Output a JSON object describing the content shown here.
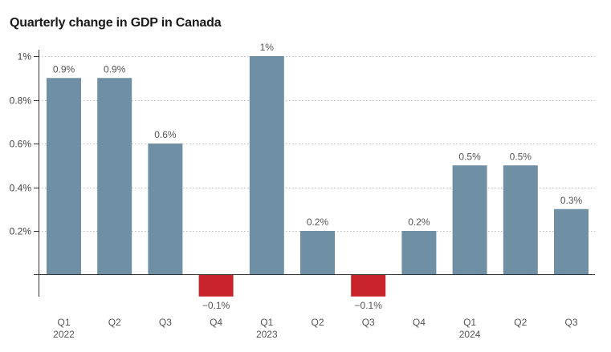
{
  "chart_data": {
    "type": "bar",
    "title": "Quarterly change in GDP in Canada",
    "xlabel": "",
    "ylabel": "",
    "ylim": [
      -0.1,
      1.0
    ],
    "yticks": [
      0.2,
      0.4,
      0.6,
      0.8,
      1.0
    ],
    "ytick_labels": [
      "0.2%",
      "0.4%",
      "0.6%",
      "0.8%",
      "1%"
    ],
    "grid": true,
    "categories": [
      "Q1",
      "Q2",
      "Q3",
      "Q4",
      "Q1",
      "Q2",
      "Q3",
      "Q4",
      "Q1",
      "Q2",
      "Q3"
    ],
    "year_labels": [
      "2022",
      "",
      "",
      "",
      "2023",
      "",
      "",
      "",
      "2024",
      "",
      ""
    ],
    "values": [
      0.9,
      0.9,
      0.6,
      -0.1,
      1.0,
      0.2,
      -0.1,
      0.2,
      0.5,
      0.5,
      0.3
    ],
    "data_labels": [
      "0.9%",
      "0.9%",
      "0.6%",
      "−0.1%",
      "1%",
      "0.2%",
      "−0.1%",
      "0.2%",
      "0.5%",
      "0.5%",
      "0.3%"
    ],
    "colors": {
      "positive": "#6f8fa5",
      "negative": "#c8232a",
      "grid": "#bdbdbd",
      "axis": "#333333"
    }
  }
}
